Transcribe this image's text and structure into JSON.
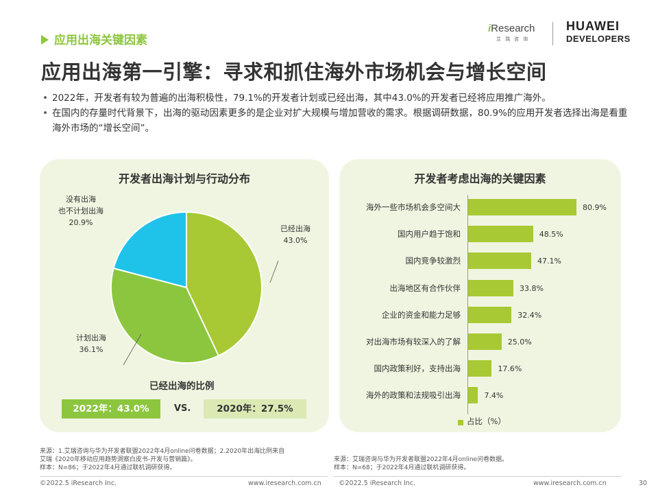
{
  "header": {
    "section_tag": "应用出海关键因素",
    "title": "应用出海第一引擎：寻求和抓住海外市场机会与增长空间"
  },
  "logos": {
    "iresearch_prefix": "i",
    "iresearch_main": "Research",
    "iresearch_sub": "艾瑞咨询",
    "huawei_line1": "HUAWEI",
    "huawei_line2": "DEVELOPERS"
  },
  "bullets": [
    "2022年，开发者有较为普遍的出海积极性，79.1%的开发者计划或已经出海，其中43.0%的开发者已经将应用推广海外。",
    "在国内的存量时代背景下，出海的驱动因素更多的是企业对扩大规模与增加营收的需求。根据调研数据，80.9%的应用开发者选择出海是看重海外市场的“增长空间”。"
  ],
  "colors": {
    "accent": "#8cc63f",
    "panel_bg": "#f0f5e1",
    "pie_lightgreen": "#a8c934",
    "pie_green": "#8cc63f",
    "pie_cyan": "#1fc3ea",
    "bar": "#a8c934",
    "box_2020": "#dbe9b4"
  },
  "chart_data": [
    {
      "type": "pie",
      "title": "开发者出海计划与行动分布",
      "slices": [
        {
          "label": "已经出海",
          "value": 43.0,
          "value_text": "43.0%",
          "color": "#a8c934"
        },
        {
          "label": "计划出海",
          "value": 36.1,
          "value_text": "36.1%",
          "color": "#8cc63f"
        },
        {
          "label": "没有出海\n也不计划出海",
          "value": 20.9,
          "value_text": "20.9%",
          "color": "#1fc3ea"
        }
      ],
      "comparison": {
        "title": "已经出海的比例",
        "left": "2022年：43.0%",
        "vs": "VS.",
        "right": "2020年：27.5%"
      }
    },
    {
      "type": "bar",
      "orientation": "horizontal",
      "title": "开发者考虑出海的关键因素",
      "categories": [
        "海外一些市场机会多空间大",
        "国内用户趋于饱和",
        "国内竞争较激烈",
        "出海地区有合作伙伴",
        "企业的资金和能力足够",
        "对出海市场有较深入的了解",
        "国内政策利好，支持出海",
        "海外的政策和法规吸引出海"
      ],
      "values": [
        80.9,
        48.5,
        47.1,
        33.8,
        32.4,
        25.0,
        17.6,
        7.4
      ],
      "value_labels": [
        "80.9%",
        "48.5%",
        "47.1%",
        "33.8%",
        "32.4%",
        "25.0%",
        "17.6%",
        "7.4%"
      ],
      "legend": "占比（%）",
      "xlim": [
        0,
        100
      ]
    }
  ],
  "notes": {
    "left": [
      "来源：1.艾瑞咨询与华为开发者联盟2022年4月online问卷数据；2.2020年出海比例来自",
      "艾瑞《2020年移动应用趋势洞察白皮书-开发与营销篇》。",
      "样本：N=86；于2022年4月通过联机调研获得。"
    ],
    "right": [
      "来源：艾瑞咨询与华为开发者联盟2022年4月online问卷数据。",
      "样本：N=68；于2022年4月通过联机调研获得。"
    ]
  },
  "footer": {
    "left_copyright": "©2022.5 iResearch Inc.",
    "left_url": "www.iresearch.com.cn",
    "right_copyright": "©2022.5 iResearch Inc.",
    "right_url": "www.iresearch.com.cn",
    "page_number": "30"
  }
}
